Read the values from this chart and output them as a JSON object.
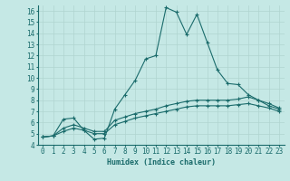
{
  "xlabel": "Humidex (Indice chaleur)",
  "ylabel": "",
  "xlim": [
    -0.5,
    23.5
  ],
  "ylim": [
    4,
    16.5
  ],
  "xticks": [
    0,
    1,
    2,
    3,
    4,
    5,
    6,
    7,
    8,
    9,
    10,
    11,
    12,
    13,
    14,
    15,
    16,
    17,
    18,
    19,
    20,
    21,
    22,
    23
  ],
  "yticks": [
    4,
    5,
    6,
    7,
    8,
    9,
    10,
    11,
    12,
    13,
    14,
    15,
    16
  ],
  "bg_color": "#c5e8e5",
  "line_color": "#1a6b6b",
  "grid_color": "#b0d5d0",
  "lines": [
    {
      "x": [
        0,
        1,
        2,
        3,
        4,
        5,
        6,
        7,
        8,
        9,
        10,
        11,
        12,
        13,
        14,
        15,
        16,
        17,
        18,
        19,
        20,
        21,
        22,
        23
      ],
      "y": [
        4.7,
        4.8,
        6.3,
        6.4,
        5.3,
        4.5,
        4.6,
        7.2,
        8.5,
        9.8,
        11.7,
        12.0,
        16.3,
        15.9,
        13.9,
        15.7,
        13.2,
        10.7,
        9.5,
        9.4,
        8.5,
        8.0,
        7.5,
        7.2
      ]
    },
    {
      "x": [
        0,
        1,
        2,
        3,
        4,
        5,
        6,
        7,
        8,
        9,
        10,
        11,
        12,
        13,
        14,
        15,
        16,
        17,
        18,
        19,
        20,
        21,
        22,
        23
      ],
      "y": [
        4.7,
        4.8,
        5.5,
        5.8,
        5.5,
        5.2,
        5.2,
        6.2,
        6.5,
        6.8,
        7.0,
        7.2,
        7.5,
        7.7,
        7.9,
        8.0,
        8.0,
        8.0,
        8.0,
        8.1,
        8.3,
        8.0,
        7.7,
        7.3
      ]
    },
    {
      "x": [
        0,
        1,
        2,
        3,
        4,
        5,
        6,
        7,
        8,
        9,
        10,
        11,
        12,
        13,
        14,
        15,
        16,
        17,
        18,
        19,
        20,
        21,
        22,
        23
      ],
      "y": [
        4.7,
        4.8,
        5.2,
        5.5,
        5.3,
        5.0,
        5.0,
        5.8,
        6.1,
        6.4,
        6.6,
        6.8,
        7.0,
        7.2,
        7.4,
        7.5,
        7.5,
        7.5,
        7.5,
        7.6,
        7.7,
        7.5,
        7.3,
        7.0
      ]
    }
  ]
}
